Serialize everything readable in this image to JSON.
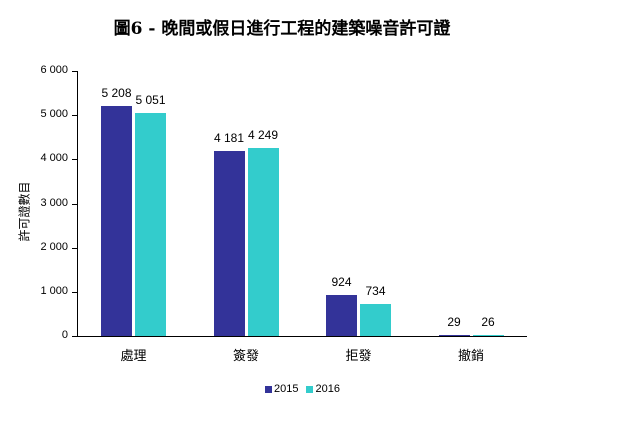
{
  "chart_data": {
    "type": "bar",
    "title": "圖6 - 晚間或假日進行工程的建築噪音許可證",
    "xlabel": "",
    "ylabel": "許可證數目",
    "ylim": [
      0,
      6000
    ],
    "yticks": [
      "0",
      "1 000",
      "2 000",
      "3 000",
      "4 000",
      "5 000",
      "6 000"
    ],
    "categories": [
      "處理",
      "簽發",
      "拒發",
      "撤銷"
    ],
    "series": [
      {
        "name": "2015",
        "color": "#333399",
        "values": [
          5208,
          4181,
          924,
          29
        ],
        "labels": [
          "5 208",
          "4 181",
          "924",
          "29"
        ]
      },
      {
        "name": "2016",
        "color": "#33CCCC",
        "values": [
          5051,
          4249,
          734,
          26
        ],
        "labels": [
          "5 051",
          "4 249",
          "734",
          "26"
        ]
      }
    ],
    "grid": false,
    "legend_position": "bottom"
  }
}
